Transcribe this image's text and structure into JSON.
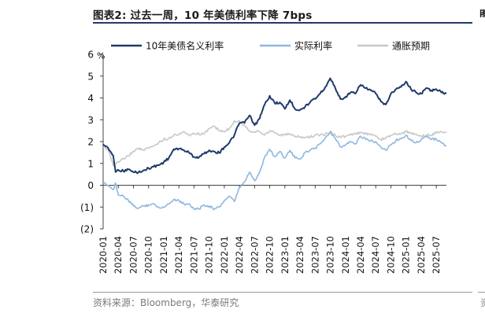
{
  "header": {
    "figure_title": "图表2:  过去一周，10 年美债利率下降 7bps",
    "edge_mark": "图"
  },
  "footer": {
    "source": "资料来源：Bloomberg，华泰研究",
    "edge_source": "资"
  },
  "chart_data": {
    "type": "line",
    "title": "",
    "unit_label": "%",
    "xlabel": "",
    "ylabel": "",
    "ylim": [
      -2,
      6
    ],
    "yticks": [
      6,
      5,
      4,
      3,
      2,
      1,
      0,
      -1,
      -2
    ],
    "ytick_labels": [
      "6",
      "5",
      "4",
      "3",
      "2",
      "1",
      "0",
      "(1)",
      "(2)"
    ],
    "x_range": [
      "2020-01",
      "2025-09"
    ],
    "xtick_labels": [
      "2020-01",
      "2020-04",
      "2020-07",
      "2020-10",
      "2021-01",
      "2021-04",
      "2021-07",
      "2021-10",
      "2022-01",
      "2022-04",
      "2022-07",
      "2022-10",
      "2023-01",
      "2023-04",
      "2023-07",
      "2023-10",
      "2024-01",
      "2024-04",
      "2024-07",
      "2024-10",
      "2025-01",
      "2025-04",
      "2025-07"
    ],
    "legend_position": "top",
    "grid": false,
    "series": [
      {
        "name": "10年美债名义利率",
        "color": "#1f3a6b",
        "points": [
          [
            "2020-01",
            1.88
          ],
          [
            "2020-02",
            1.7
          ],
          [
            "2020-03",
            1.35
          ],
          [
            "2020-03-15",
            0.6
          ],
          [
            "2020-04",
            0.7
          ],
          [
            "2020-05",
            0.65
          ],
          [
            "2020-06",
            0.72
          ],
          [
            "2020-07",
            0.6
          ],
          [
            "2020-08",
            0.6
          ],
          [
            "2020-09",
            0.68
          ],
          [
            "2020-10",
            0.78
          ],
          [
            "2020-11",
            0.85
          ],
          [
            "2020-12",
            0.92
          ],
          [
            "2021-01",
            1.05
          ],
          [
            "2021-02",
            1.25
          ],
          [
            "2021-03",
            1.65
          ],
          [
            "2021-04",
            1.67
          ],
          [
            "2021-05",
            1.6
          ],
          [
            "2021-06",
            1.5
          ],
          [
            "2021-07",
            1.3
          ],
          [
            "2021-08",
            1.28
          ],
          [
            "2021-09",
            1.45
          ],
          [
            "2021-10",
            1.6
          ],
          [
            "2021-11",
            1.55
          ],
          [
            "2021-12",
            1.48
          ],
          [
            "2022-01",
            1.75
          ],
          [
            "2022-02",
            1.95
          ],
          [
            "2022-03",
            2.3
          ],
          [
            "2022-04",
            2.85
          ],
          [
            "2022-05",
            2.85
          ],
          [
            "2022-06",
            3.2
          ],
          [
            "2022-07",
            2.75
          ],
          [
            "2022-08",
            3.05
          ],
          [
            "2022-09",
            3.7
          ],
          [
            "2022-10",
            4.1
          ],
          [
            "2022-11",
            3.75
          ],
          [
            "2022-12",
            3.8
          ],
          [
            "2023-01",
            3.5
          ],
          [
            "2023-02",
            3.9
          ],
          [
            "2023-03",
            3.5
          ],
          [
            "2023-04",
            3.45
          ],
          [
            "2023-05",
            3.6
          ],
          [
            "2023-06",
            3.8
          ],
          [
            "2023-07",
            3.95
          ],
          [
            "2023-08",
            4.2
          ],
          [
            "2023-09",
            4.5
          ],
          [
            "2023-10",
            4.9
          ],
          [
            "2023-11",
            4.45
          ],
          [
            "2023-12",
            3.95
          ],
          [
            "2024-01",
            4.05
          ],
          [
            "2024-02",
            4.25
          ],
          [
            "2024-03",
            4.2
          ],
          [
            "2024-04",
            4.6
          ],
          [
            "2024-05",
            4.45
          ],
          [
            "2024-06",
            4.35
          ],
          [
            "2024-07",
            4.2
          ],
          [
            "2024-08",
            3.85
          ],
          [
            "2024-09",
            3.7
          ],
          [
            "2024-10",
            4.2
          ],
          [
            "2024-11",
            4.4
          ],
          [
            "2024-12",
            4.5
          ],
          [
            "2025-01",
            4.75
          ],
          [
            "2025-02",
            4.4
          ],
          [
            "2025-03",
            4.25
          ],
          [
            "2025-04",
            4.2
          ],
          [
            "2025-05",
            4.45
          ],
          [
            "2025-06",
            4.35
          ],
          [
            "2025-07",
            4.4
          ],
          [
            "2025-08",
            4.25
          ],
          [
            "2025-09",
            4.2
          ]
        ]
      },
      {
        "name": "实际利率",
        "color": "#8eb7e0",
        "points": [
          [
            "2020-01",
            0.1
          ],
          [
            "2020-02",
            0.0
          ],
          [
            "2020-03",
            -0.2
          ],
          [
            "2020-03-15",
            0.1
          ],
          [
            "2020-04",
            -0.45
          ],
          [
            "2020-05",
            -0.5
          ],
          [
            "2020-06",
            -0.7
          ],
          [
            "2020-07",
            -0.95
          ],
          [
            "2020-08",
            -1.05
          ],
          [
            "2020-09",
            -0.95
          ],
          [
            "2020-10",
            -0.9
          ],
          [
            "2020-11",
            -0.85
          ],
          [
            "2020-12",
            -1.0
          ],
          [
            "2021-01",
            -1.0
          ],
          [
            "2021-02",
            -0.85
          ],
          [
            "2021-03",
            -0.65
          ],
          [
            "2021-04",
            -0.7
          ],
          [
            "2021-05",
            -0.85
          ],
          [
            "2021-06",
            -0.85
          ],
          [
            "2021-07",
            -1.1
          ],
          [
            "2021-08",
            -1.08
          ],
          [
            "2021-09",
            -0.9
          ],
          [
            "2021-10",
            -0.95
          ],
          [
            "2021-11",
            -1.1
          ],
          [
            "2021-12",
            -1.0
          ],
          [
            "2022-01",
            -0.7
          ],
          [
            "2022-02",
            -0.5
          ],
          [
            "2022-03",
            -0.75
          ],
          [
            "2022-04",
            -0.1
          ],
          [
            "2022-05",
            0.15
          ],
          [
            "2022-06",
            0.6
          ],
          [
            "2022-07",
            0.2
          ],
          [
            "2022-08",
            0.6
          ],
          [
            "2022-09",
            1.3
          ],
          [
            "2022-10",
            1.65
          ],
          [
            "2022-11",
            1.3
          ],
          [
            "2022-12",
            1.55
          ],
          [
            "2023-01",
            1.25
          ],
          [
            "2023-02",
            1.6
          ],
          [
            "2023-03",
            1.25
          ],
          [
            "2023-04",
            1.2
          ],
          [
            "2023-05",
            1.5
          ],
          [
            "2023-06",
            1.6
          ],
          [
            "2023-07",
            1.7
          ],
          [
            "2023-08",
            1.9
          ],
          [
            "2023-09",
            2.15
          ],
          [
            "2023-10",
            2.45
          ],
          [
            "2023-11",
            2.15
          ],
          [
            "2023-12",
            1.75
          ],
          [
            "2024-01",
            1.85
          ],
          [
            "2024-02",
            2.0
          ],
          [
            "2024-03",
            1.9
          ],
          [
            "2024-04",
            2.25
          ],
          [
            "2024-05",
            2.1
          ],
          [
            "2024-06",
            2.05
          ],
          [
            "2024-07",
            2.0
          ],
          [
            "2024-08",
            1.75
          ],
          [
            "2024-09",
            1.6
          ],
          [
            "2024-10",
            1.85
          ],
          [
            "2024-11",
            2.05
          ],
          [
            "2024-12",
            2.15
          ],
          [
            "2025-01",
            2.3
          ],
          [
            "2025-02",
            2.05
          ],
          [
            "2025-03",
            1.95
          ],
          [
            "2025-04",
            2.1
          ],
          [
            "2025-05",
            2.25
          ],
          [
            "2025-06",
            2.1
          ],
          [
            "2025-07",
            2.1
          ],
          [
            "2025-08",
            1.95
          ],
          [
            "2025-09",
            1.8
          ]
        ]
      },
      {
        "name": "通胀预期",
        "color": "#c8c8c8",
        "points": [
          [
            "2020-01",
            1.75
          ],
          [
            "2020-02",
            1.65
          ],
          [
            "2020-03",
            0.9
          ],
          [
            "2020-04",
            1.05
          ],
          [
            "2020-05",
            1.2
          ],
          [
            "2020-06",
            1.35
          ],
          [
            "2020-07",
            1.55
          ],
          [
            "2020-08",
            1.7
          ],
          [
            "2020-09",
            1.6
          ],
          [
            "2020-10",
            1.7
          ],
          [
            "2020-11",
            1.8
          ],
          [
            "2020-12",
            1.95
          ],
          [
            "2021-01",
            2.1
          ],
          [
            "2021-02",
            2.15
          ],
          [
            "2021-03",
            2.3
          ],
          [
            "2021-04",
            2.35
          ],
          [
            "2021-05",
            2.45
          ],
          [
            "2021-06",
            2.3
          ],
          [
            "2021-07",
            2.35
          ],
          [
            "2021-08",
            2.35
          ],
          [
            "2021-09",
            2.35
          ],
          [
            "2021-10",
            2.6
          ],
          [
            "2021-11",
            2.7
          ],
          [
            "2021-12",
            2.5
          ],
          [
            "2022-01",
            2.45
          ],
          [
            "2022-02",
            2.6
          ],
          [
            "2022-03",
            2.95
          ],
          [
            "2022-04",
            2.95
          ],
          [
            "2022-05",
            2.75
          ],
          [
            "2022-06",
            2.5
          ],
          [
            "2022-07",
            2.45
          ],
          [
            "2022-08",
            2.45
          ],
          [
            "2022-09",
            2.3
          ],
          [
            "2022-10",
            2.5
          ],
          [
            "2022-11",
            2.4
          ],
          [
            "2022-12",
            2.3
          ],
          [
            "2023-01",
            2.3
          ],
          [
            "2023-02",
            2.35
          ],
          [
            "2023-03",
            2.25
          ],
          [
            "2023-04",
            2.2
          ],
          [
            "2023-05",
            2.2
          ],
          [
            "2023-06",
            2.2
          ],
          [
            "2023-07",
            2.3
          ],
          [
            "2023-08",
            2.3
          ],
          [
            "2023-09",
            2.35
          ],
          [
            "2023-10",
            2.45
          ],
          [
            "2023-11",
            2.3
          ],
          [
            "2023-12",
            2.2
          ],
          [
            "2024-01",
            2.25
          ],
          [
            "2024-02",
            2.3
          ],
          [
            "2024-03",
            2.35
          ],
          [
            "2024-04",
            2.4
          ],
          [
            "2024-05",
            2.35
          ],
          [
            "2024-06",
            2.3
          ],
          [
            "2024-07",
            2.25
          ],
          [
            "2024-08",
            2.1
          ],
          [
            "2024-09",
            2.15
          ],
          [
            "2024-10",
            2.3
          ],
          [
            "2024-11",
            2.35
          ],
          [
            "2024-12",
            2.35
          ],
          [
            "2025-01",
            2.45
          ],
          [
            "2025-02",
            2.4
          ],
          [
            "2025-03",
            2.35
          ],
          [
            "2025-04",
            2.25
          ],
          [
            "2025-05",
            2.3
          ],
          [
            "2025-06",
            2.3
          ],
          [
            "2025-07",
            2.4
          ],
          [
            "2025-08",
            2.45
          ],
          [
            "2025-09",
            2.4
          ]
        ]
      }
    ]
  }
}
